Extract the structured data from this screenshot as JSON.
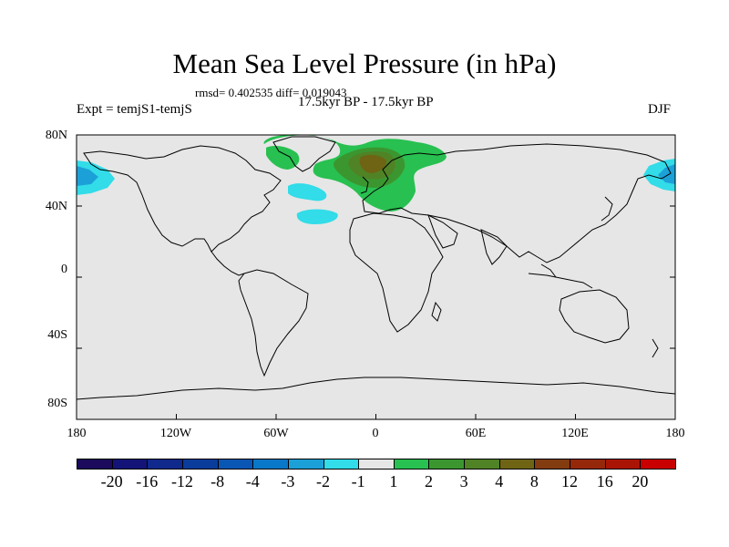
{
  "title": "Mean Sea Level Pressure (in hPa)",
  "stats": "rmsd= 0.402535 diff= 0.019043",
  "period": "17.5kyr BP - 17.5kyr BP",
  "experiment": "Expt = temjS1-temjS",
  "season": "DJF",
  "y_ticks": [
    "80N",
    "40N",
    "0",
    "40S",
    "80S"
  ],
  "x_ticks": [
    "180",
    "120W",
    "60W",
    "0",
    "60E",
    "120E",
    "180"
  ],
  "colorbar": {
    "labels": [
      "-20",
      "-16",
      "-12",
      "-8",
      "-4",
      "-3",
      "-2",
      "-1",
      "1",
      "2",
      "3",
      "4",
      "8",
      "12",
      "16",
      "20"
    ],
    "colors": [
      "#1c0a5c",
      "#141478",
      "#0f2a8c",
      "#0a3c9c",
      "#0a56b4",
      "#0a78c8",
      "#1ca0d8",
      "#32dce8",
      "#e6e6e6",
      "#28c050",
      "#3c9630",
      "#508226",
      "#6e6414",
      "#823c10",
      "#96280a",
      "#aa1405",
      "#c80000"
    ]
  },
  "colors": {
    "ocean": "#e6e6e6",
    "coast": "#000000",
    "cyan": "#32dce8",
    "blue": "#1ca0d8",
    "green": "#28c050",
    "dark_green": "#3c9630",
    "olive": "#508226"
  }
}
